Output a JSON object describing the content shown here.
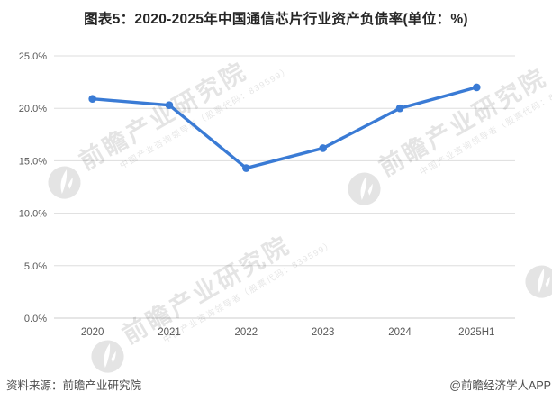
{
  "chart_data": {
    "type": "line",
    "title": "图表5：2020-2025年中国通信芯片行业资产负债率(单位：%)",
    "categories": [
      "2020",
      "2021",
      "2022",
      "2023",
      "2024",
      "2025H1"
    ],
    "series": [
      {
        "name": "资产负债率",
        "color": "#3a7bd5",
        "values": [
          20.9,
          20.3,
          14.3,
          16.2,
          20.0,
          22.0
        ]
      }
    ],
    "unit": "%",
    "ylim": [
      0,
      25
    ],
    "ytick_step": 5,
    "ytick_labels": [
      "0.0%",
      "5.0%",
      "10.0%",
      "15.0%",
      "20.0%",
      "25.0%"
    ],
    "grid": "horizontal",
    "legend": "none",
    "colors": {
      "gridline": "#dddddd",
      "axis_line": "#cccccc",
      "tick_text": "#595959",
      "line": "#3a7bd5",
      "marker": "#3a7bd5"
    }
  },
  "footer": {
    "source": "资料来源：前瞻产业研究院",
    "credit": "@前瞻经济学人APP"
  },
  "watermark": {
    "brand": "前瞻产业研究院",
    "tagline": "中国产业咨询领导者（股票代码：839599）"
  }
}
